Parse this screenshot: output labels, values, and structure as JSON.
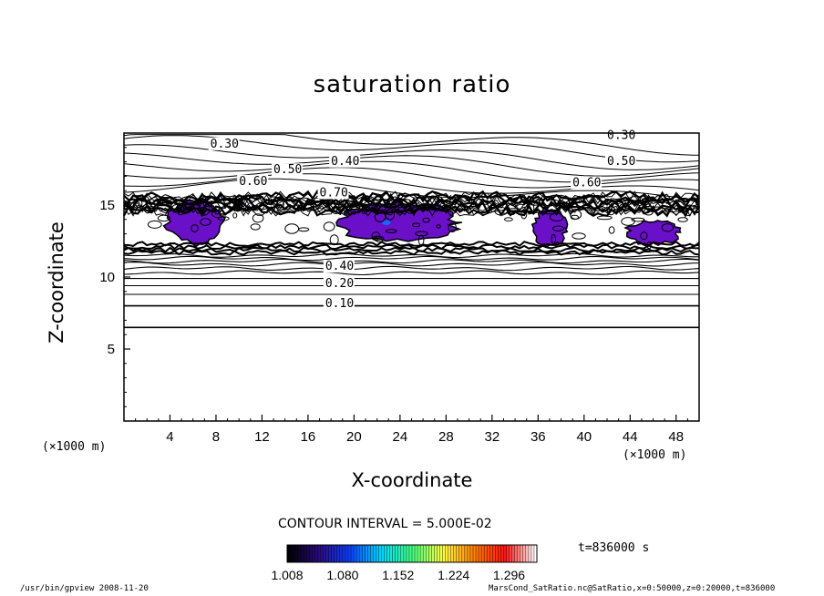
{
  "chart_data": {
    "type": "contour",
    "title": "saturation ratio",
    "xlabel": "X-coordinate",
    "ylabel": "Z-coordinate",
    "x_unit": "(×1000 m)",
    "y_unit": "(×1000 m)",
    "xlim": [
      0,
      50
    ],
    "ylim": [
      0,
      20
    ],
    "x_ticks": [
      4,
      8,
      12,
      16,
      20,
      24,
      28,
      32,
      36,
      40,
      44,
      48
    ],
    "y_ticks": [
      5,
      10,
      15
    ],
    "contour_interval_text": "CONTOUR INTERVAL = 5.000E-02",
    "contour_labels": [
      {
        "text": "0.30",
        "x": 7.5,
        "z": 19.0
      },
      {
        "text": "0.40",
        "x": 18.0,
        "z": 17.8
      },
      {
        "text": "0.50",
        "x": 13.0,
        "z": 17.2
      },
      {
        "text": "0.60",
        "x": 10.0,
        "z": 16.4
      },
      {
        "text": "0.70",
        "x": 17.0,
        "z": 15.6
      },
      {
        "text": "0.30",
        "x": 42.0,
        "z": 19.6
      },
      {
        "text": "0.50",
        "x": 42.0,
        "z": 17.8
      },
      {
        "text": "0.60",
        "x": 39.0,
        "z": 16.3
      },
      {
        "text": "0.40",
        "x": 17.5,
        "z": 10.5
      },
      {
        "text": "0.20",
        "x": 17.5,
        "z": 9.3
      },
      {
        "text": "0.10",
        "x": 17.5,
        "z": 7.9
      }
    ],
    "horizontal_contours_z": [
      6.5,
      8.0,
      8.8,
      9.4,
      9.9,
      10.3,
      10.6,
      10.9,
      11.1,
      11.3,
      11.5
    ],
    "supersaturated_regions": [
      {
        "x": [
          3.5,
          9.0
        ],
        "z": [
          12.2,
          15.5
        ]
      },
      {
        "x": [
          9.5,
          10.3
        ],
        "z": [
          14.6,
          15.4
        ]
      },
      {
        "x": [
          18.0,
          29.5
        ],
        "z": [
          12.4,
          15.2
        ]
      },
      {
        "x": [
          35.5,
          38.5
        ],
        "z": [
          12.0,
          14.8
        ]
      },
      {
        "x": [
          43.5,
          48.5
        ],
        "z": [
          12.2,
          14.0
        ]
      }
    ],
    "colorbar": {
      "tick_labels": [
        "1.008",
        "1.080",
        "1.152",
        "1.224",
        "1.296"
      ],
      "min": 1.008,
      "max": 1.332,
      "colormap": [
        "#000000",
        "#2a0a80",
        "#0a40ff",
        "#00d8ff",
        "#40ff80",
        "#ffff40",
        "#ff8000",
        "#ff1010",
        "#ffffff"
      ]
    },
    "region_color": "#6a10c8",
    "core_color": "#2060ff"
  },
  "time_label": "t=836000 s",
  "footer_left": "/usr/bin/gpview  2008-11-20",
  "footer_right": "MarsCond_SatRatio.nc@SatRatio,x=0:50000,z=0:20000,t=836000"
}
